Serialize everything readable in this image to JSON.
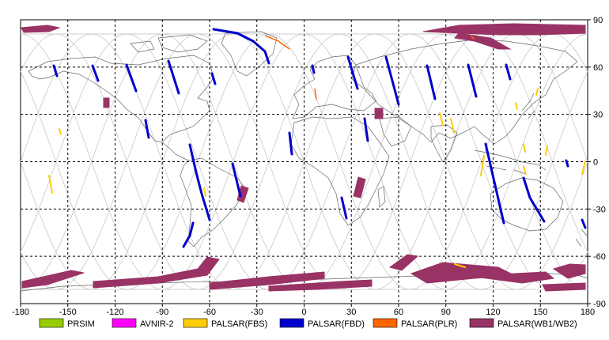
{
  "x_ticks": [
    "-180",
    "-150",
    "-120",
    "-90",
    "-60",
    "-30",
    "0",
    "30",
    "60",
    "90",
    "120",
    "150",
    "180"
  ],
  "y_ticks": [
    "90",
    "60",
    "30",
    "0",
    "-30",
    "-60",
    "-90"
  ],
  "legend": [
    {
      "label": "PRSIM",
      "color": "#99cc00"
    },
    {
      "label": "AVNIR-2",
      "color": "#ff00ff"
    },
    {
      "label": "PALSAR(FBS)",
      "color": "#ffcc00"
    },
    {
      "label": "PALSAR(FBD)",
      "color": "#0000cc"
    },
    {
      "label": "PALSAR(PLR)",
      "color": "#ff6600"
    },
    {
      "label": "PALSAR(WB1/WB2)",
      "color": "#993366"
    }
  ],
  "map": {
    "extent": {
      "lon": [
        -180,
        180
      ],
      "lat": [
        -90,
        90
      ]
    },
    "grid": "dashed, every 30 degrees",
    "background_color": "#ffffff",
    "coastline_color": "#666666",
    "orbit_track_color": "#c8c8c8"
  }
}
